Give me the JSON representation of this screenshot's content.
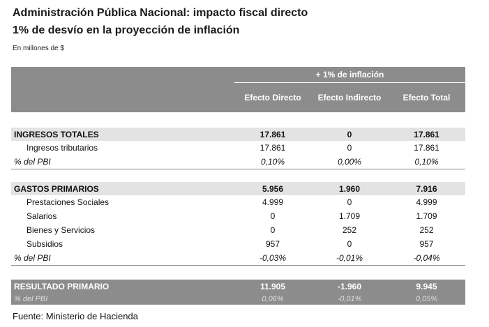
{
  "title": {
    "line1": "Administración Pública Nacional: impacto fiscal directo",
    "line2": "1% de desvío en la proyección de inflación"
  },
  "unit_note": "En millones de $",
  "table": {
    "group_header": "+ 1% de inflación",
    "columns": [
      "Efecto Directo",
      "Efecto Indirecto",
      "Efecto Total"
    ],
    "ingresos": {
      "label": "INGRESOS TOTALES",
      "values": [
        "17.861",
        "0",
        "17.861"
      ],
      "rows": [
        {
          "label": "Ingresos tributarios",
          "values": [
            "17.861",
            "0",
            "17.861"
          ]
        }
      ],
      "pct_label": "% del PBI",
      "pct_values": [
        "0,10%",
        "0,00%",
        "0,10%"
      ]
    },
    "gastos": {
      "label": "GASTOS PRIMARIOS",
      "values": [
        "5.956",
        "1.960",
        "7.916"
      ],
      "rows": [
        {
          "label": "Prestaciones Sociales",
          "values": [
            "4.999",
            "0",
            "4.999"
          ]
        },
        {
          "label": "Salarios",
          "values": [
            "0",
            "1.709",
            "1.709"
          ]
        },
        {
          "label": "Bienes y Servicios",
          "values": [
            "0",
            "252",
            "252"
          ]
        },
        {
          "label": "Subsidios",
          "values": [
            "957",
            "0",
            "957"
          ]
        }
      ],
      "pct_label": "% del PBI",
      "pct_values": [
        "-0,03%",
        "-0,01%",
        "-0,04%"
      ]
    },
    "resultado": {
      "label": "RESULTADO PRIMARIO",
      "values": [
        "11.905",
        "-1.960",
        "9.945"
      ],
      "pct_label": "% del PBI",
      "pct_values": [
        "0,06%",
        "-0,01%",
        "0,05%"
      ]
    }
  },
  "source": "Fuente: Ministerio de Hacienda"
}
